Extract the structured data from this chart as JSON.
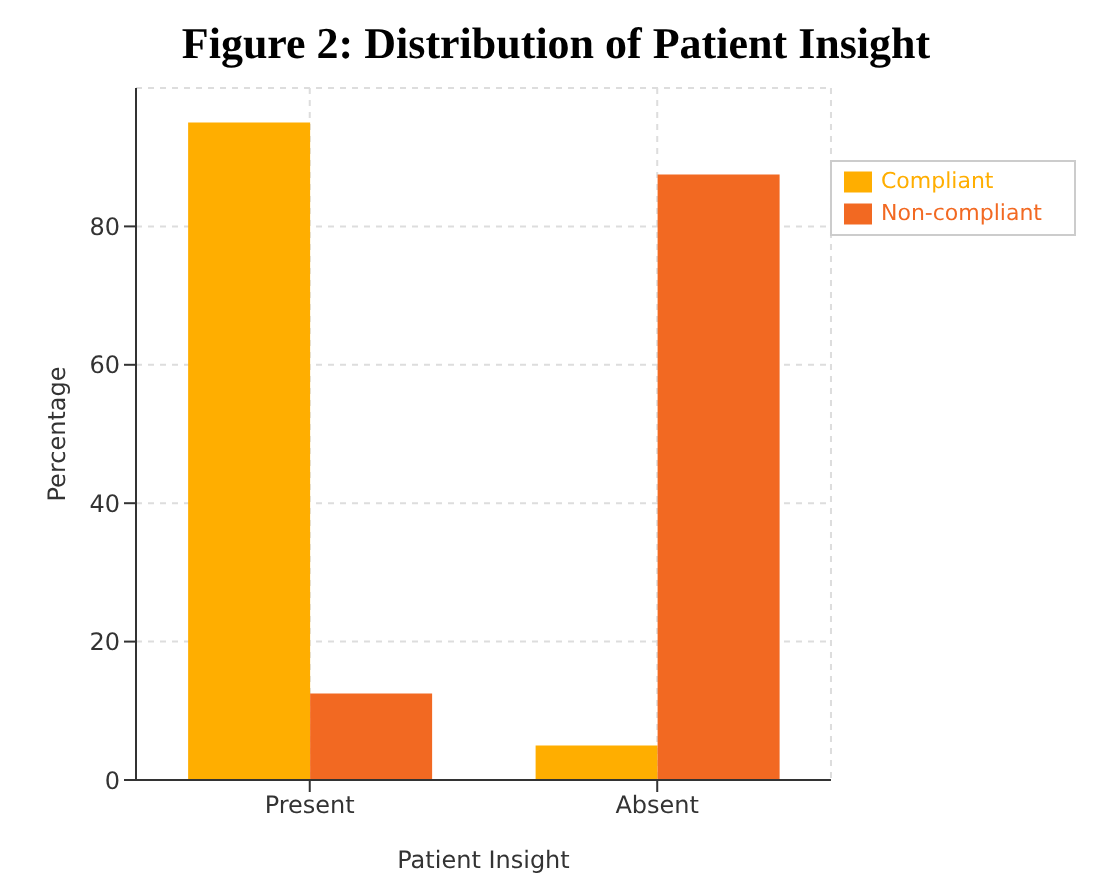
{
  "chart_data": {
    "type": "bar",
    "title": "Figure 2: Distribution of Patient Insight",
    "xlabel": "Patient Insight",
    "ylabel": "Percentage",
    "categories": [
      "Present",
      "Absent"
    ],
    "series": [
      {
        "name": "Compliant",
        "color": "#ffae00",
        "values": [
          95,
          5
        ]
      },
      {
        "name": "Non-compliant",
        "color": "#f26922",
        "values": [
          12.5,
          87.5
        ]
      }
    ],
    "ylim": [
      0,
      100
    ],
    "yticks": [
      0,
      20,
      40,
      60,
      80
    ],
    "grid": true,
    "legend": "top right"
  }
}
